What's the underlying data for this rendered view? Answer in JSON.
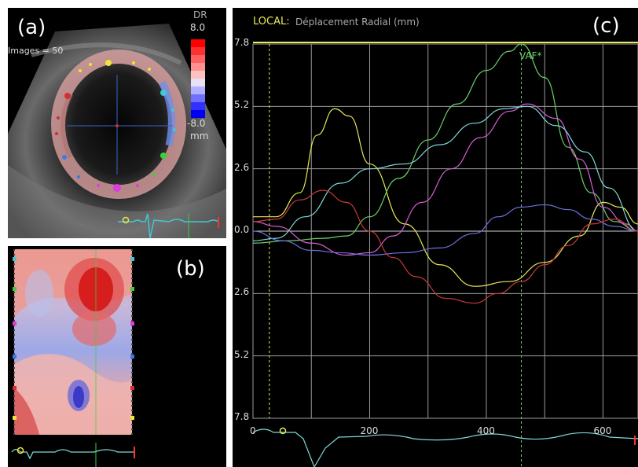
{
  "panel_a": {
    "letter": "(a)",
    "images_label": "Images = 50",
    "scale_title": "DR",
    "scale_top": "8.0",
    "scale_bottom": "-8.0",
    "scale_unit": "mm"
  },
  "panel_b": {
    "letter": "(b)"
  },
  "panel_c": {
    "letter": "(c)",
    "local_label": "LOCAL:",
    "title": "Déplacement Radial (mm)",
    "marker_label": "VAF*",
    "y_ticks": [
      "7.8",
      "5.2",
      "2.6",
      "0.0",
      "2.6",
      "5.2",
      "7.8"
    ],
    "x_ticks": [
      "0",
      "200",
      "400",
      "600"
    ]
  },
  "colors": {
    "yellow": "#e8e85a",
    "green": "#6ccf6c",
    "magenta": "#d65fd6",
    "cyan": "#7fd8d8",
    "blue": "#6f6fe0",
    "red": "#c93a3a",
    "grid": "#9a9a9a"
  },
  "chart_data": {
    "type": "line",
    "title": "Déplacement Radial (mm)",
    "xlabel": "",
    "ylabel": "",
    "xlim": [
      0,
      660
    ],
    "ylim": [
      -7.8,
      7.8
    ],
    "series": [
      {
        "color": "yellow",
        "x": [
          0,
          40,
          80,
          110,
          140,
          165,
          200,
          260,
          320,
          380,
          440,
          500,
          560,
          600,
          630,
          660
        ],
        "y": [
          0.6,
          0.6,
          1.6,
          4.0,
          5.1,
          4.8,
          2.8,
          0.3,
          -1.4,
          -2.3,
          -2.1,
          -1.3,
          -0.2,
          1.2,
          1.0,
          0.3
        ]
      },
      {
        "color": "green",
        "x": [
          0,
          60,
          120,
          160,
          200,
          250,
          300,
          350,
          400,
          440,
          460,
          500,
          540,
          580,
          620,
          660
        ],
        "y": [
          -0.5,
          -0.4,
          -0.3,
          -0.2,
          0.6,
          2.2,
          3.8,
          5.3,
          6.7,
          7.5,
          7.8,
          6.4,
          3.5,
          1.6,
          0.4,
          0.0
        ]
      },
      {
        "color": "magenta",
        "x": [
          0,
          40,
          100,
          160,
          200,
          240,
          290,
          340,
          390,
          440,
          470,
          520,
          560,
          600,
          640,
          660
        ],
        "y": [
          0.4,
          0.2,
          -0.5,
          -1.0,
          -0.9,
          -0.2,
          1.2,
          2.6,
          3.9,
          5.0,
          5.3,
          4.7,
          3.0,
          1.0,
          0.3,
          0.0
        ]
      },
      {
        "color": "cyan",
        "x": [
          0,
          40,
          90,
          150,
          200,
          260,
          320,
          380,
          430,
          470,
          520,
          570,
          610,
          660
        ],
        "y": [
          -0.4,
          -0.3,
          0.6,
          2.0,
          2.6,
          2.8,
          3.6,
          4.5,
          5.1,
          5.2,
          4.4,
          3.3,
          1.8,
          0.0
        ]
      },
      {
        "color": "blue",
        "x": [
          0,
          50,
          100,
          150,
          200,
          260,
          320,
          380,
          420,
          460,
          500,
          540,
          580,
          620,
          660
        ],
        "y": [
          0.0,
          -0.4,
          -0.8,
          -0.9,
          -1.0,
          -0.9,
          -0.7,
          -0.1,
          0.6,
          1.0,
          1.1,
          0.9,
          0.5,
          0.2,
          0.0
        ]
      },
      {
        "color": "red",
        "x": [
          0,
          40,
          80,
          120,
          160,
          200,
          240,
          280,
          330,
          380,
          420,
          460,
          500,
          540,
          580,
          620,
          660
        ],
        "y": [
          0.4,
          0.5,
          1.3,
          1.7,
          1.2,
          0.0,
          -1.1,
          -1.9,
          -2.8,
          -3.0,
          -2.6,
          -2.1,
          -1.4,
          -0.6,
          0.3,
          0.5,
          0.0
        ]
      }
    ]
  }
}
